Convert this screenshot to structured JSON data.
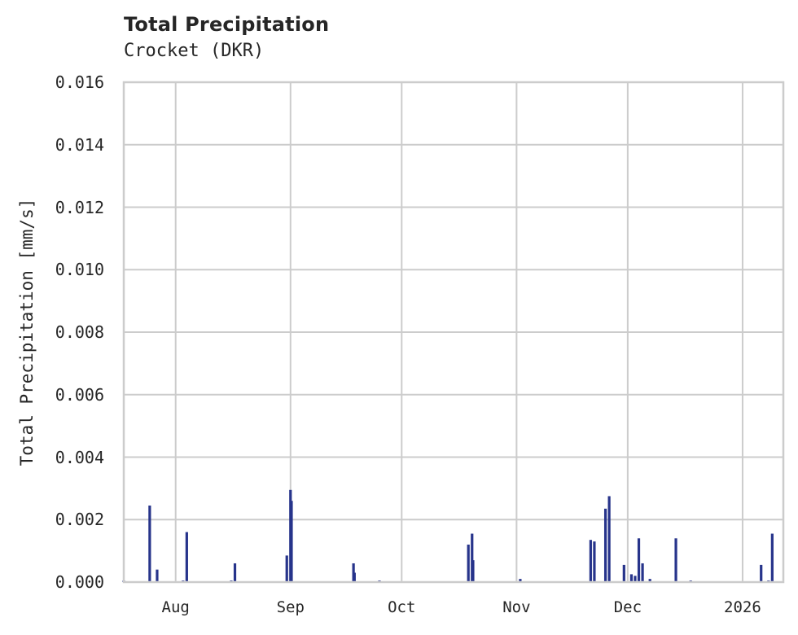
{
  "chart": {
    "title": "Total Precipitation",
    "subtitle": "Crocket (DKR)",
    "ylabel": "Total Precipitation [mm/s]",
    "yticks": [
      "0.000",
      "0.002",
      "0.004",
      "0.006",
      "0.008",
      "0.010",
      "0.012",
      "0.014",
      "0.016"
    ],
    "xticks": [
      "Aug",
      "Sep",
      "Oct",
      "Nov",
      "Dec",
      "2026"
    ]
  },
  "colors": {
    "series": "#27348b",
    "grid": "#cccccc",
    "text": "#262626"
  },
  "chart_data": {
    "type": "bar",
    "title": "Total Precipitation",
    "subtitle": "Crocket (DKR)",
    "xlabel": "",
    "ylabel": "Total Precipitation [mm/s]",
    "ylim": [
      0,
      0.016
    ],
    "xlim": [
      "2025-07-18",
      "2026-01-12"
    ],
    "grid": true,
    "legend": null,
    "x_tick_labels": [
      "Aug",
      "Sep",
      "Oct",
      "Nov",
      "Dec",
      "2026"
    ],
    "y_tick_labels": [
      "0.000",
      "0.002",
      "0.004",
      "0.006",
      "0.008",
      "0.010",
      "0.012",
      "0.014",
      "0.016"
    ],
    "series": [
      {
        "name": "Total Precipitation",
        "points": [
          {
            "date": "2025-07-18",
            "value": 5e-05
          },
          {
            "date": "2025-07-25",
            "value": 0.00245
          },
          {
            "date": "2025-07-27",
            "value": 0.0004
          },
          {
            "date": "2025-08-03",
            "value": 5e-05
          },
          {
            "date": "2025-08-04",
            "value": 0.0016
          },
          {
            "date": "2025-08-16",
            "value": 5e-05
          },
          {
            "date": "2025-08-17",
            "value": 0.0006
          },
          {
            "date": "2025-08-31",
            "value": 0.00085
          },
          {
            "date": "2025-09-01",
            "value": 0.00295
          },
          {
            "date": "2025-09-01",
            "value": 0.0026
          },
          {
            "date": "2025-09-18",
            "value": 0.0006
          },
          {
            "date": "2025-09-18",
            "value": 0.0003
          },
          {
            "date": "2025-09-25",
            "value": 5e-05
          },
          {
            "date": "2025-10-19",
            "value": 0.0012
          },
          {
            "date": "2025-10-20",
            "value": 0.00155
          },
          {
            "date": "2025-10-20",
            "value": 0.0007
          },
          {
            "date": "2025-11-02",
            "value": 0.0001
          },
          {
            "date": "2025-11-21",
            "value": 0.00135
          },
          {
            "date": "2025-11-22",
            "value": 0.0013
          },
          {
            "date": "2025-11-25",
            "value": 0.00235
          },
          {
            "date": "2025-11-26",
            "value": 0.00275
          },
          {
            "date": "2025-11-30",
            "value": 0.00055
          },
          {
            "date": "2025-12-02",
            "value": 0.00025
          },
          {
            "date": "2025-12-03",
            "value": 0.0002
          },
          {
            "date": "2025-12-04",
            "value": 0.0014
          },
          {
            "date": "2025-12-05",
            "value": 0.0006
          },
          {
            "date": "2025-12-07",
            "value": 0.0001
          },
          {
            "date": "2025-12-14",
            "value": 0.0014
          },
          {
            "date": "2025-12-18",
            "value": 5e-05
          },
          {
            "date": "2026-01-06",
            "value": 0.00055
          },
          {
            "date": "2026-01-08",
            "value": 5e-05
          },
          {
            "date": "2026-01-09",
            "value": 0.00155
          }
        ]
      }
    ]
  }
}
